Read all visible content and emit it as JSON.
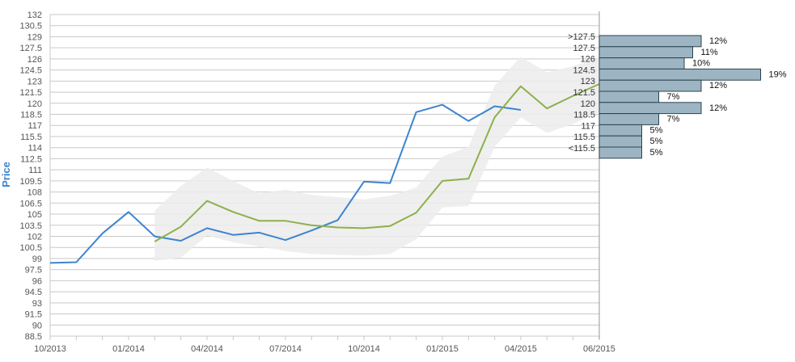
{
  "chart_data": {
    "type": "line",
    "ylabel": "Price",
    "ylim": [
      88.5,
      132
    ],
    "ytick_labels": [
      "132",
      "130.5",
      "129",
      "127.5",
      "126",
      "124.5",
      "123",
      "121.5",
      "120",
      "118.5",
      "117",
      "115.5",
      "114",
      "112.5",
      "111",
      "109.5",
      "108",
      "106.5",
      "105",
      "103.5",
      "102",
      "100.5",
      "99",
      "97.5",
      "96",
      "94.5",
      "93",
      "91.5",
      "90",
      "88.5"
    ],
    "xtick_labels": [
      "10/2013",
      "01/2014",
      "04/2014",
      "07/2014",
      "10/2014",
      "01/2015",
      "04/2015",
      "06/2015"
    ],
    "grid": true,
    "colors": {
      "price": "#3c84cf",
      "forecast": "#8db04c",
      "band": "#ececec",
      "hist_fill": "#9db5c3",
      "hist_stroke": "#2d4250",
      "axis_title": "#3c84cf"
    },
    "series": [
      {
        "key": "price",
        "x": [
          0,
          1,
          2,
          3,
          4,
          5,
          6,
          7,
          8,
          9,
          10,
          11,
          12,
          13,
          14,
          15,
          16,
          17,
          18
        ],
        "values": [
          98.4,
          98.5,
          102.4,
          105.3,
          102.0,
          101.4,
          103.1,
          102.2,
          102.5,
          101.5,
          102.8,
          104.2,
          109.4,
          109.2,
          118.8,
          119.8,
          117.6,
          119.6,
          119.1
        ]
      },
      {
        "key": "forecast",
        "x": [
          4,
          5,
          6,
          7,
          8,
          9,
          10,
          11,
          12,
          13,
          14,
          15,
          16,
          17,
          18,
          19,
          20,
          21
        ],
        "values": [
          101.3,
          103.3,
          106.8,
          105.3,
          104.1,
          104.1,
          103.5,
          103.2,
          103.1,
          103.4,
          105.2,
          109.5,
          109.8,
          118.1,
          122.3,
          119.3,
          121.0,
          122.6
        ]
      }
    ],
    "band": {
      "x": [
        4,
        5,
        6,
        7,
        8,
        9,
        10,
        11,
        12,
        13,
        14,
        15,
        16,
        17,
        18,
        19,
        20,
        21
      ],
      "upper": [
        105.5,
        108.8,
        111.3,
        109.5,
        107.8,
        108.3,
        107.6,
        107.3,
        107.0,
        107.5,
        108.6,
        112.8,
        114.1,
        122.4,
        126.3,
        124.2,
        125.0,
        126.2
      ],
      "lower": [
        98.7,
        99.1,
        102.1,
        101.2,
        100.6,
        100.0,
        99.6,
        99.5,
        99.4,
        99.6,
        101.6,
        105.9,
        106.1,
        114.1,
        118.1,
        116.0,
        117.2,
        118.8
      ]
    },
    "histogram": {
      "categories": [
        ">127.5",
        "127.5",
        "126",
        "124.5",
        "123",
        "121.5",
        "120",
        "118.5",
        "117",
        "115.5",
        "<115.5"
      ],
      "values": [
        12,
        11,
        10,
        19,
        12,
        7,
        12,
        7,
        5,
        5,
        5
      ],
      "labels": [
        "12%",
        "11%",
        "10%",
        "19%",
        "12%",
        "7%",
        "12%",
        "7%",
        "5%",
        "5%",
        "5%"
      ]
    }
  }
}
